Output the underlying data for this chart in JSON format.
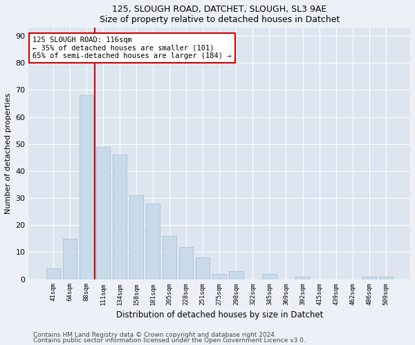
{
  "title1": "125, SLOUGH ROAD, DATCHET, SLOUGH, SL3 9AE",
  "title2": "Size of property relative to detached houses in Datchet",
  "xlabel": "Distribution of detached houses by size in Datchet",
  "ylabel": "Number of detached properties",
  "categories": [
    "41sqm",
    "64sqm",
    "88sqm",
    "111sqm",
    "134sqm",
    "158sqm",
    "181sqm",
    "205sqm",
    "228sqm",
    "251sqm",
    "275sqm",
    "298sqm",
    "322sqm",
    "345sqm",
    "369sqm",
    "392sqm",
    "415sqm",
    "439sqm",
    "462sqm",
    "486sqm",
    "509sqm"
  ],
  "values": [
    4,
    15,
    68,
    49,
    46,
    31,
    28,
    16,
    12,
    8,
    2,
    3,
    0,
    2,
    0,
    1,
    0,
    0,
    0,
    1,
    1
  ],
  "bar_color": "#c9daea",
  "bar_edge_color": "#aabfd4",
  "highlight_line_color": "#cc0000",
  "annotation_line1": "125 SLOUGH ROAD: 116sqm",
  "annotation_line2": "← 35% of detached houses are smaller (101)",
  "annotation_line3": "65% of semi-detached houses are larger (184) →",
  "ylim": [
    0,
    93
  ],
  "yticks": [
    0,
    10,
    20,
    30,
    40,
    50,
    60,
    70,
    80,
    90
  ],
  "footnote1": "Contains HM Land Registry data © Crown copyright and database right 2024.",
  "footnote2": "Contains public sector information licensed under the Open Government Licence v3.0.",
  "bg_color": "#edf1f7",
  "plot_bg_color": "#dde6f0"
}
